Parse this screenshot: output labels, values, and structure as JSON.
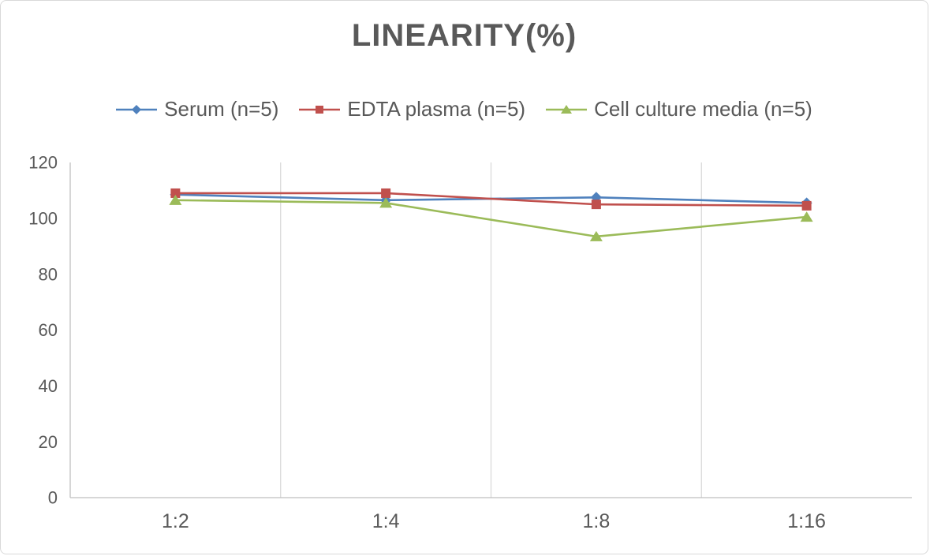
{
  "title": "LINEARITY(%)",
  "colors": {
    "title_text": "#595959",
    "axis_text": "#595959",
    "gridline": "#d9d9d9",
    "axis_line": "#bfbfbf",
    "serum": "#4F81BD",
    "edta_plasma": "#C0504D",
    "cell_culture_media": "#9BBB59"
  },
  "chart_data": {
    "type": "line",
    "title": "LINEARITY(%)",
    "categories": [
      "1:2",
      "1:4",
      "1:8",
      "1:16"
    ],
    "series": [
      {
        "name": "Serum (n=5)",
        "color": "#4F81BD",
        "marker": "diamond",
        "values": [
          108.5,
          106.5,
          107.5,
          105.5
        ]
      },
      {
        "name": "EDTA plasma (n=5)",
        "color": "#C0504D",
        "marker": "square",
        "values": [
          109,
          109,
          105,
          104.5
        ]
      },
      {
        "name": "Cell culture media (n=5)",
        "color": "#9BBB59",
        "marker": "triangle",
        "values": [
          106.5,
          105.5,
          93.5,
          100.5
        ]
      }
    ],
    "xlabel": "",
    "ylabel": "",
    "ylim": [
      0,
      120
    ],
    "yticks": [
      0,
      20,
      40,
      60,
      80,
      100,
      120
    ],
    "grid": "vertical-only",
    "legend_position": "top"
  }
}
